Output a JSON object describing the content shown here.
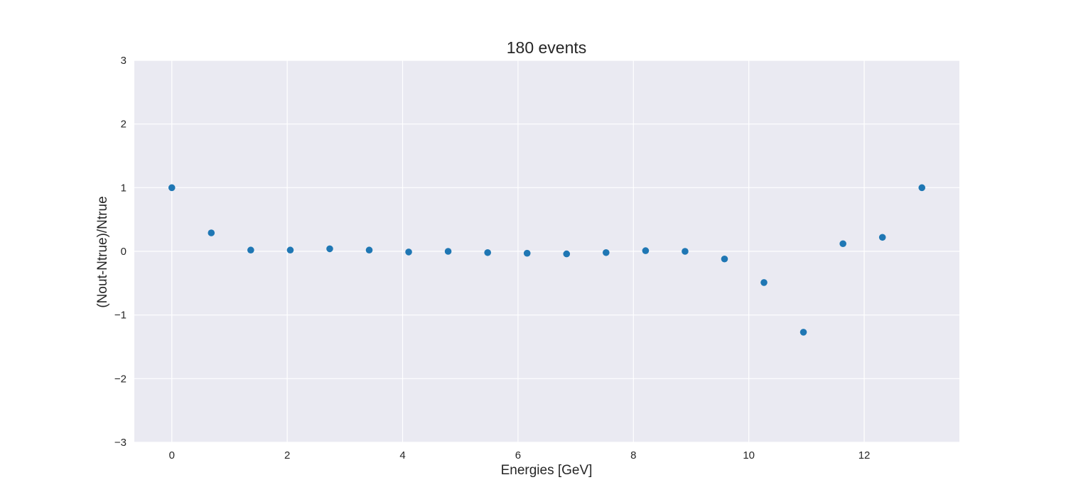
{
  "chart_data": {
    "type": "scatter",
    "title": "180 events",
    "xlabel": "Energies [GeV]",
    "ylabel": "(Nout-Ntrue)/Ntrue",
    "xlim": [
      -0.65,
      13.65
    ],
    "ylim": [
      -3,
      3
    ],
    "xticks": [
      0,
      2,
      4,
      6,
      8,
      10,
      12
    ],
    "yticks": [
      -3,
      -2,
      -1,
      0,
      1,
      2,
      3
    ],
    "xtick_labels": [
      "0",
      "2",
      "4",
      "6",
      "8",
      "10",
      "12"
    ],
    "ytick_labels": [
      "−3",
      "−2",
      "−1",
      "0",
      "1",
      "2",
      "3"
    ],
    "grid": true,
    "colors": {
      "background": "#eaeaf2",
      "grid": "#ffffff",
      "marker": "#1f77b4"
    },
    "series": [
      {
        "x": [
          0,
          0.684,
          1.368,
          2.053,
          2.737,
          3.421,
          4.105,
          4.789,
          5.474,
          6.158,
          6.842,
          7.526,
          8.211,
          8.895,
          9.579,
          10.263,
          10.947,
          11.632,
          12.316,
          13.0
        ],
        "y": [
          1.0,
          0.29,
          0.02,
          0.02,
          0.04,
          0.02,
          -0.01,
          0.0,
          -0.02,
          -0.03,
          -0.04,
          -0.02,
          0.01,
          0.0,
          -0.12,
          -0.49,
          -1.27,
          0.12,
          0.22,
          1.0
        ]
      }
    ]
  }
}
